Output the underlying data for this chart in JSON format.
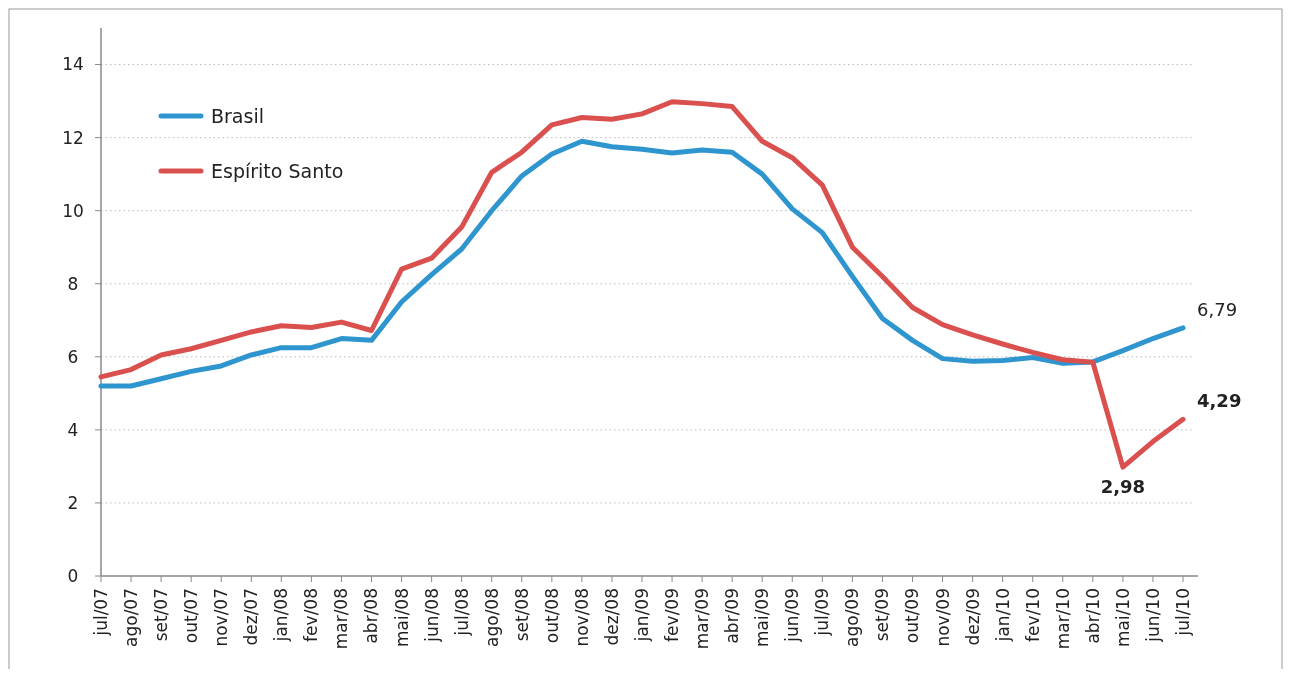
{
  "chart_data": {
    "type": "line",
    "categories": [
      "jul/07",
      "ago/07",
      "set/07",
      "out/07",
      "nov/07",
      "dez/07",
      "jan/08",
      "fev/08",
      "mar/08",
      "abr/08",
      "mai/08",
      "jun/08",
      "jul/08",
      "ago/08",
      "set/08",
      "out/08",
      "nov/08",
      "dez/08",
      "jan/09",
      "fev/09",
      "mar/09",
      "abr/09",
      "mai/09",
      "jun/09",
      "jul/09",
      "ago/09",
      "set/09",
      "out/09",
      "nov/09",
      "dez/09",
      "jan/10",
      "fev/10",
      "mar/10",
      "abr/10",
      "mai/10",
      "jun/10",
      "jul/10"
    ],
    "series": [
      {
        "name": "Brasil",
        "color": "#2e95cf",
        "values": [
          5.2,
          5.2,
          5.4,
          5.6,
          5.75,
          6.05,
          6.25,
          6.25,
          6.5,
          6.45,
          7.5,
          8.25,
          8.95,
          10.0,
          10.95,
          11.55,
          11.9,
          11.75,
          11.68,
          11.58,
          11.66,
          11.6,
          11.0,
          10.05,
          9.4,
          8.2,
          7.05,
          6.45,
          5.95,
          5.88,
          5.9,
          5.98,
          5.82,
          5.86,
          6.17,
          6.5,
          6.79
        ],
        "value_labels": [
          null,
          null,
          null,
          null,
          null,
          null,
          null,
          null,
          null,
          null,
          null,
          null,
          null,
          null,
          null,
          null,
          null,
          null,
          null,
          null,
          null,
          null,
          null,
          null,
          null,
          null,
          null,
          null,
          null,
          null,
          null,
          null,
          null,
          null,
          null,
          null,
          "6,79"
        ]
      },
      {
        "name": "Espírito Santo",
        "color": "#d9504e",
        "values": [
          5.45,
          5.65,
          6.05,
          6.22,
          6.45,
          6.68,
          6.85,
          6.8,
          6.95,
          6.72,
          8.4,
          8.7,
          9.55,
          11.05,
          11.6,
          12.35,
          12.55,
          12.5,
          12.65,
          12.98,
          12.93,
          12.85,
          11.9,
          11.45,
          10.7,
          9.0,
          8.2,
          7.35,
          6.88,
          6.6,
          6.35,
          6.12,
          5.92,
          5.85,
          2.98,
          3.68,
          4.29
        ],
        "value_labels": [
          null,
          null,
          null,
          null,
          null,
          null,
          null,
          null,
          null,
          null,
          null,
          null,
          null,
          null,
          null,
          null,
          null,
          null,
          null,
          null,
          null,
          null,
          null,
          null,
          null,
          null,
          null,
          null,
          null,
          null,
          null,
          null,
          null,
          null,
          "2,98",
          null,
          "4,29"
        ]
      }
    ],
    "ylim": [
      0,
      15
    ],
    "yticks": [
      0,
      2,
      4,
      6,
      8,
      10,
      12,
      14
    ],
    "grid": "y",
    "legend": "top left"
  }
}
